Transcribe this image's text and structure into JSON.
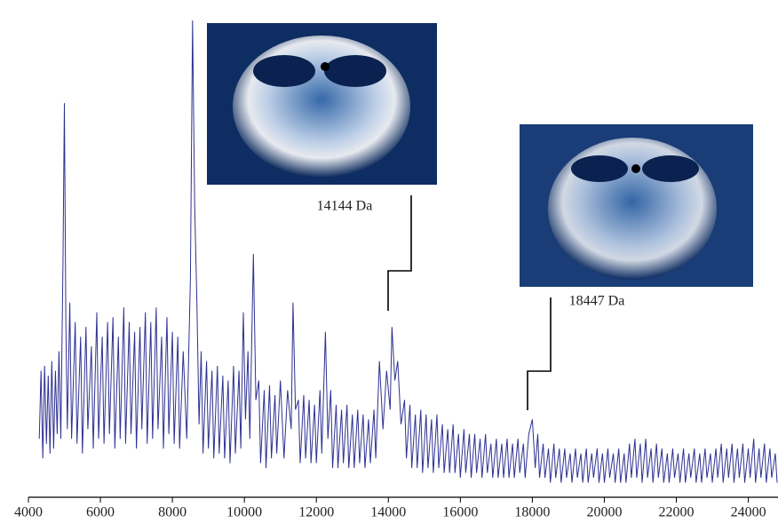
{
  "chart_data": {
    "type": "line",
    "color": "#2e3192",
    "annotations": [
      "14144 Da",
      "18447 Da"
    ],
    "xlim": [
      4000,
      24800
    ],
    "ylim": [
      0,
      100
    ],
    "xticks": [
      4000,
      6000,
      8000,
      10000,
      12000,
      14000,
      16000,
      18000,
      20000,
      22000,
      24000
    ],
    "x": [
      4300,
      4350,
      4400,
      4450,
      4500,
      4550,
      4600,
      4650,
      4700,
      4750,
      4800,
      4850,
      4900,
      4960,
      5000,
      5040,
      5080,
      5150,
      5200,
      5300,
      5350,
      5450,
      5500,
      5600,
      5650,
      5750,
      5800,
      5900,
      5950,
      6050,
      6100,
      6200,
      6250,
      6350,
      6400,
      6500,
      6550,
      6650,
      6700,
      6800,
      6850,
      6950,
      7000,
      7100,
      7150,
      7250,
      7300,
      7400,
      7450,
      7550,
      7600,
      7700,
      7750,
      7850,
      7900,
      8000,
      8050,
      8150,
      8200,
      8300,
      8400,
      8500,
      8560,
      8620,
      8680,
      8740,
      8800,
      8850,
      8950,
      9000,
      9100,
      9150,
      9250,
      9300,
      9400,
      9450,
      9550,
      9600,
      9700,
      9750,
      9850,
      9900,
      9970,
      10030,
      10100,
      10150,
      10250,
      10320,
      10400,
      10450,
      10550,
      10600,
      10700,
      10750,
      10850,
      10900,
      11000,
      11100,
      11200,
      11300,
      11350,
      11420,
      11500,
      11550,
      11650,
      11700,
      11800,
      11850,
      11950,
      12000,
      12100,
      12150,
      12250,
      12320,
      12400,
      12450,
      12550,
      12600,
      12700,
      12750,
      12850,
      12900,
      13000,
      13050,
      13150,
      13200,
      13300,
      13350,
      13450,
      13500,
      13600,
      13650,
      13750,
      13850,
      13950,
      14050,
      14100,
      14180,
      14260,
      14350,
      14450,
      14500,
      14600,
      14650,
      14750,
      14800,
      14900,
      14950,
      15050,
      15100,
      15200,
      15250,
      15350,
      15400,
      15500,
      15550,
      15650,
      15700,
      15800,
      15850,
      15950,
      16000,
      16100,
      16150,
      16250,
      16300,
      16400,
      16450,
      16550,
      16600,
      16700,
      16750,
      16850,
      16900,
      17000,
      17050,
      17150,
      17200,
      17300,
      17350,
      17450,
      17500,
      17600,
      17650,
      17750,
      17800,
      17900,
      18000,
      18080,
      18150,
      18200,
      18300,
      18350,
      18450,
      18500,
      18600,
      18650,
      18750,
      18800,
      18900,
      18950,
      19050,
      19100,
      19200,
      19250,
      19350,
      19400,
      19500,
      19550,
      19650,
      19700,
      19800,
      19850,
      19950,
      20000,
      20100,
      20150,
      20250,
      20300,
      20400,
      20450,
      20550,
      20600,
      20700,
      20750,
      20850,
      20900,
      21000,
      21050,
      21150,
      21200,
      21300,
      21350,
      21450,
      21500,
      21600,
      21650,
      21750,
      21800,
      21900,
      21950,
      22050,
      22100,
      22200,
      22250,
      22350,
      22400,
      22500,
      22550,
      22650,
      22700,
      22800,
      22850,
      22950,
      23000,
      23100,
      23150,
      23250,
      23300,
      23400,
      23450,
      23550,
      23600,
      23700,
      23750,
      23850,
      23900,
      24000,
      24050,
      24150,
      24200,
      24300,
      24350,
      24450,
      24500,
      24600,
      24650,
      24750,
      24800
    ],
    "values": [
      12,
      26,
      8,
      27,
      11,
      25,
      9,
      28,
      10,
      26,
      13,
      30,
      12,
      48,
      81,
      35,
      14,
      40,
      12,
      36,
      11,
      33,
      9,
      35,
      14,
      31,
      10,
      38,
      12,
      33,
      11,
      36,
      13,
      37,
      10,
      33,
      12,
      39,
      11,
      36,
      13,
      34,
      10,
      35,
      14,
      38,
      11,
      36,
      12,
      39,
      14,
      33,
      10,
      37,
      13,
      34,
      11,
      33,
      10,
      30,
      12,
      45,
      98,
      60,
      40,
      15,
      30,
      9,
      28,
      10,
      26,
      8,
      27,
      9,
      25,
      8,
      24,
      7,
      27,
      9,
      26,
      10,
      38,
      16,
      30,
      12,
      50,
      20,
      24,
      7,
      22,
      6,
      23,
      8,
      21,
      9,
      24,
      8,
      22,
      14,
      40,
      18,
      20,
      7,
      21,
      8,
      20,
      7,
      19,
      7,
      22,
      9,
      34,
      12,
      22,
      6,
      19,
      6,
      18,
      7,
      19,
      6,
      17,
      6,
      18,
      7,
      17,
      6,
      16,
      7,
      18,
      8,
      28,
      14,
      26,
      18,
      35,
      24,
      28,
      15,
      20,
      8,
      19,
      6,
      17,
      6,
      18,
      5,
      17,
      6,
      16,
      5,
      17,
      6,
      15,
      5,
      14,
      5,
      15,
      5,
      13,
      4,
      14,
      5,
      13,
      4,
      13,
      5,
      12,
      4,
      13,
      5,
      11,
      4,
      12,
      4,
      11,
      4,
      12,
      4,
      11,
      4,
      12,
      5,
      11,
      4,
      13,
      16,
      6,
      13,
      4,
      11,
      4,
      10,
      3,
      11,
      4,
      10,
      3,
      10,
      4,
      9,
      3,
      10,
      4,
      9,
      3,
      10,
      3,
      9,
      4,
      10,
      3,
      9,
      3,
      10,
      4,
      9,
      3,
      10,
      3,
      9,
      3,
      11,
      4,
      12,
      4,
      11,
      3,
      12,
      4,
      10,
      3,
      11,
      4,
      10,
      3,
      9,
      3,
      10,
      4,
      9,
      3,
      10,
      3,
      9,
      4,
      10,
      3,
      9,
      3,
      10,
      4,
      9,
      3,
      10,
      4,
      11,
      3,
      10,
      4,
      11,
      3,
      10,
      4,
      11,
      3,
      10,
      4,
      12,
      3,
      10,
      4,
      11,
      3,
      10,
      4,
      9,
      3
    ]
  }
}
